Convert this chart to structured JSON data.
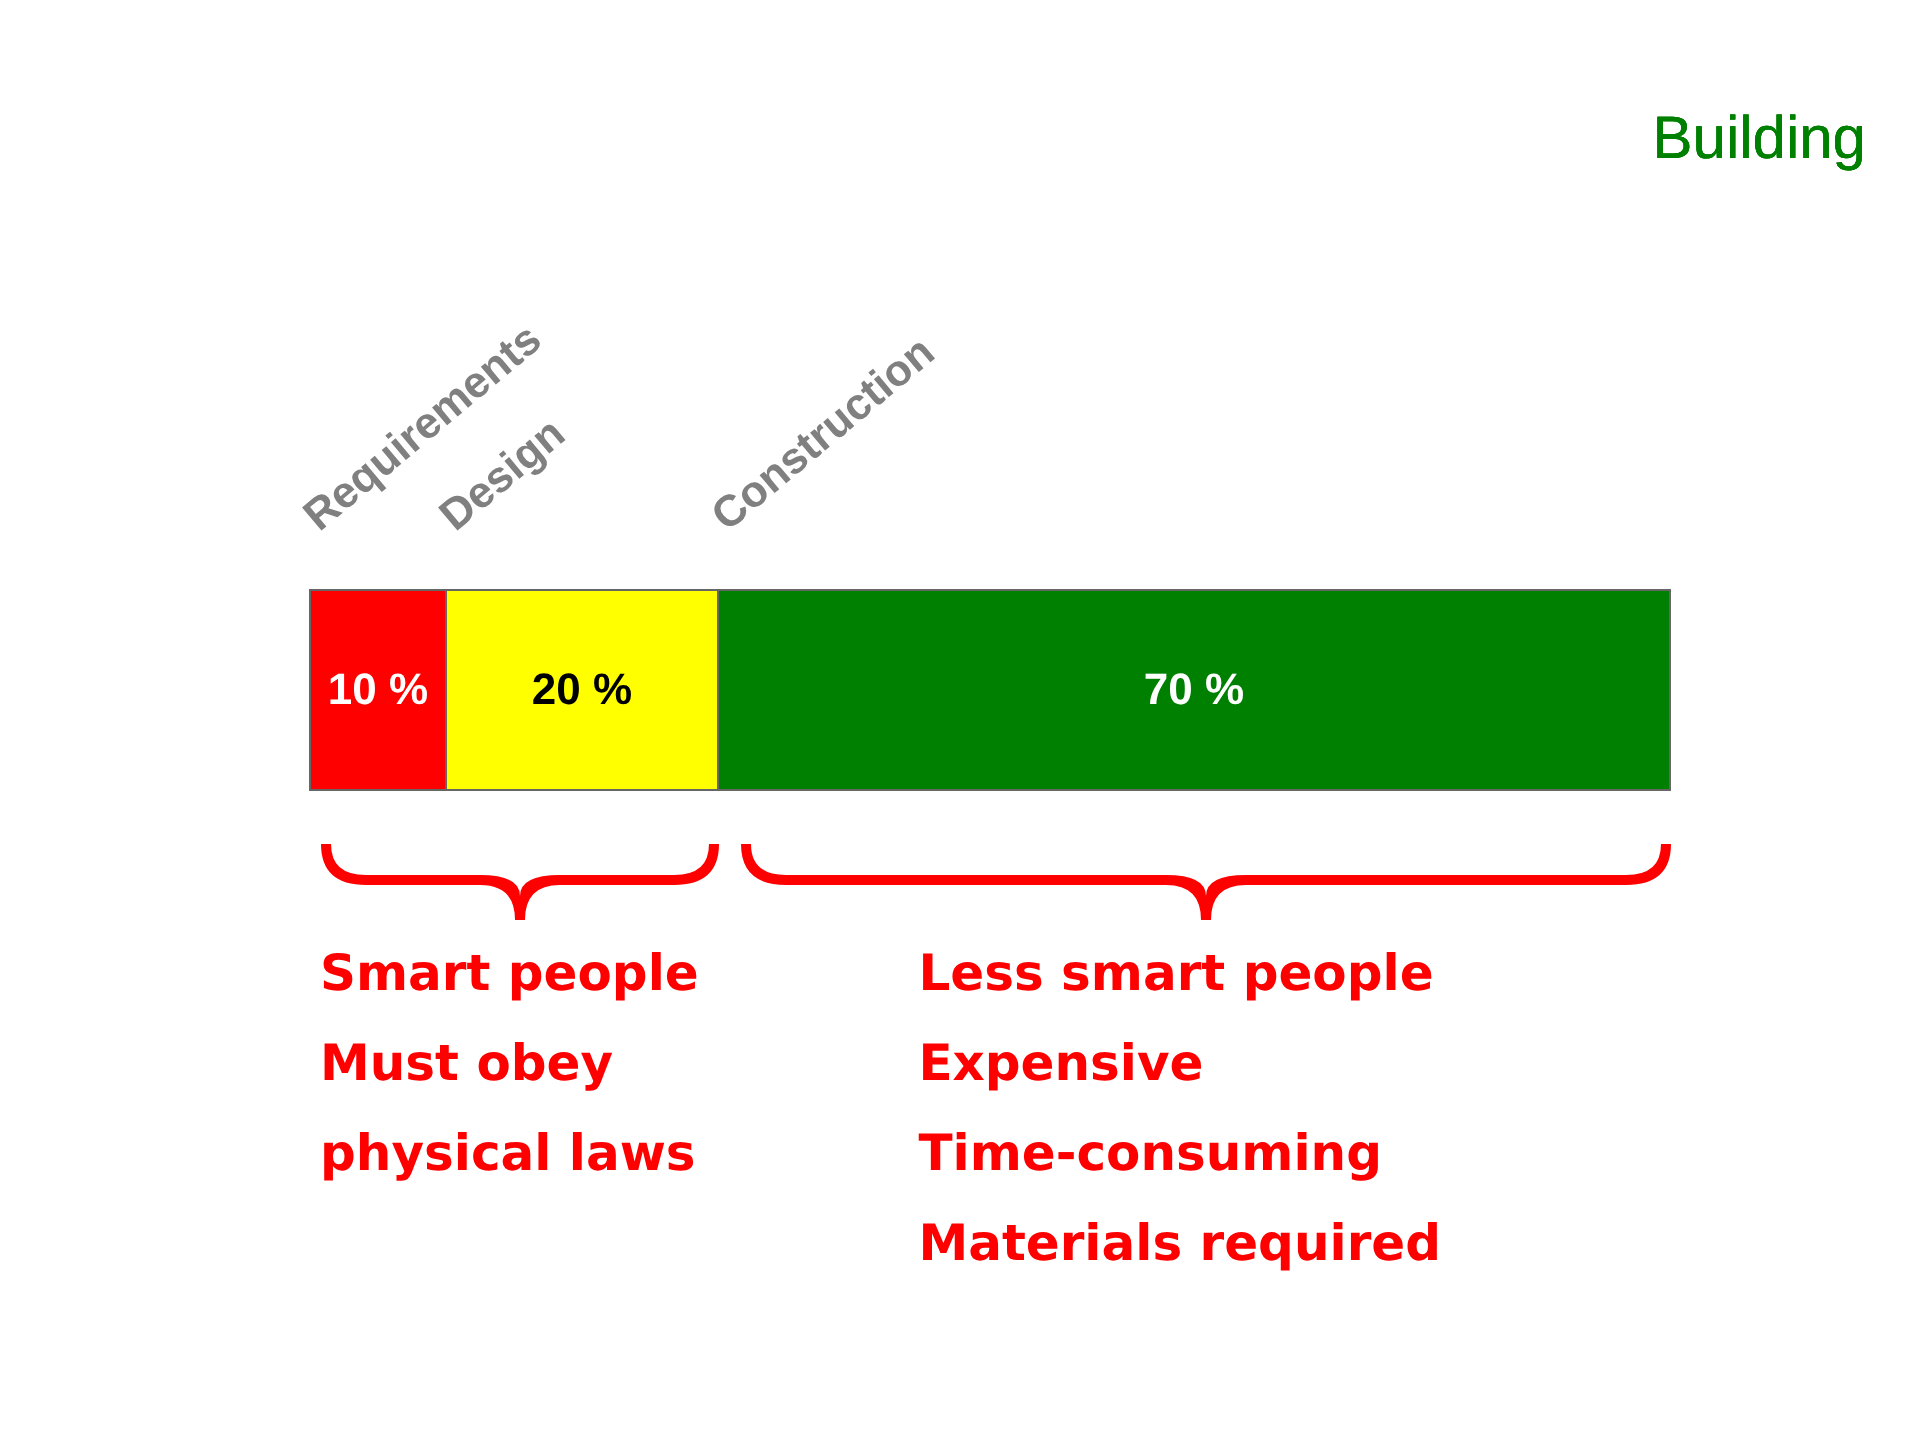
{
  "chart_data": {
    "type": "bar",
    "title": "Building",
    "orientation": "horizontal",
    "stacked": true,
    "categories": [
      null
    ],
    "tick_labels": false,
    "legend": false,
    "series": [
      {
        "name": "Requirements",
        "color": "#ff0000",
        "values": [
          10
        ],
        "value_labels": [
          "10 %"
        ]
      },
      {
        "name": "Design",
        "color": "#ffff00",
        "values": [
          20
        ],
        "value_labels": [
          "20 %"
        ]
      },
      {
        "name": "Construction",
        "color": "#008000",
        "values": [
          70
        ],
        "value_labels": [
          "70 %"
        ]
      }
    ],
    "annotations": [
      "Smart people\nMust obey\nphysical laws",
      "Less smart people\nExpensive\nTime-consuming\nMaterials required"
    ]
  }
}
